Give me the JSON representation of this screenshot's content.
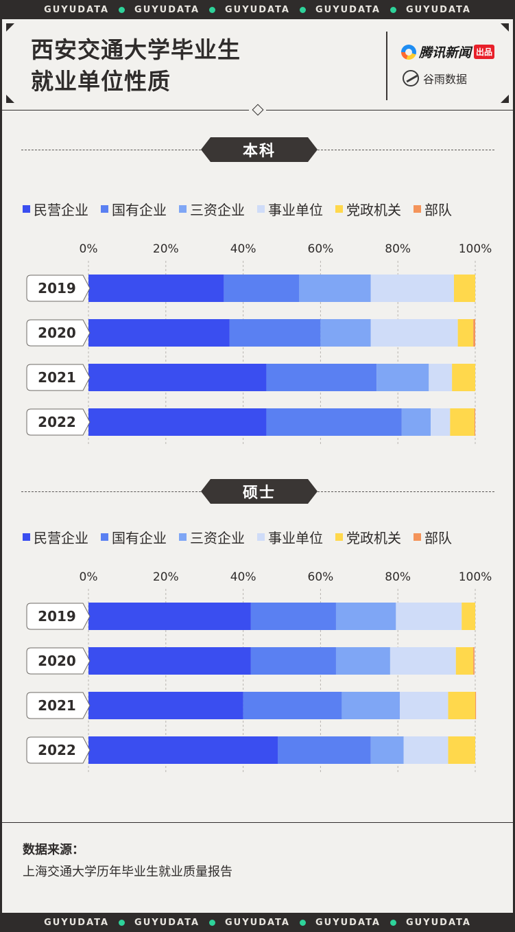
{
  "ticker": {
    "items": [
      "GUYUDATA",
      "GUYUDATA",
      "GUYUDATA",
      "GUYUDATA",
      "GUYUDATA"
    ]
  },
  "header": {
    "title_line1": "西安交通大学毕业生",
    "title_line2": "就业单位性质",
    "brand1_name": "腾讯新闻",
    "brand1_badge": "出品",
    "brand2_name": "谷雨数据"
  },
  "colors": {
    "民营企业": "#3a4ef0",
    "国有企业": "#5a80f2",
    "三资企业": "#7fa6f5",
    "事业单位": "#cfdcf8",
    "党政机关": "#ffd84c",
    "部队": "#f4945a"
  },
  "chart_data": [
    {
      "type": "bar",
      "orientation": "horizontal",
      "stacked": true,
      "title": "本科",
      "categories": [
        "2019",
        "2020",
        "2021",
        "2022"
      ],
      "legend": [
        "民营企业",
        "国有企业",
        "三资企业",
        "事业单位",
        "党政机关",
        "部队"
      ],
      "x_ticks": [
        "0%",
        "20%",
        "40%",
        "60%",
        "80%",
        "100%"
      ],
      "xlim": [
        0,
        100
      ],
      "series": [
        {
          "name": "民营企业",
          "values": [
            35,
            36.5,
            46,
            46
          ]
        },
        {
          "name": "国有企业",
          "values": [
            19.5,
            23.5,
            28.5,
            35
          ]
        },
        {
          "name": "三资企业",
          "values": [
            18.5,
            13,
            13.5,
            7.5
          ]
        },
        {
          "name": "事业单位",
          "values": [
            21.5,
            22.5,
            6,
            5
          ]
        },
        {
          "name": "党政机关",
          "values": [
            5.5,
            4,
            6,
            6.3
          ]
        },
        {
          "name": "部队",
          "values": [
            0,
            0.5,
            0,
            0.2
          ]
        }
      ]
    },
    {
      "type": "bar",
      "orientation": "horizontal",
      "stacked": true,
      "title": "硕士",
      "categories": [
        "2019",
        "2020",
        "2021",
        "2022"
      ],
      "legend": [
        "民营企业",
        "国有企业",
        "三资企业",
        "事业单位",
        "党政机关",
        "部队"
      ],
      "x_ticks": [
        "0%",
        "20%",
        "40%",
        "60%",
        "80%",
        "100%"
      ],
      "xlim": [
        0,
        100
      ],
      "series": [
        {
          "name": "民营企业",
          "values": [
            42,
            42,
            40,
            49
          ]
        },
        {
          "name": "国有企业",
          "values": [
            22,
            22,
            25.5,
            24
          ]
        },
        {
          "name": "三资企业",
          "values": [
            15.5,
            14,
            15,
            8.5
          ]
        },
        {
          "name": "事业单位",
          "values": [
            17,
            17,
            12.5,
            11.5
          ]
        },
        {
          "name": "党政机关",
          "values": [
            3.5,
            4.5,
            7,
            7
          ]
        },
        {
          "name": "部队",
          "values": [
            0,
            0.3,
            0.2,
            0
          ]
        }
      ]
    }
  ],
  "source": {
    "title": "数据来源：",
    "text": "上海交通大学历年毕业生就业质量报告"
  }
}
